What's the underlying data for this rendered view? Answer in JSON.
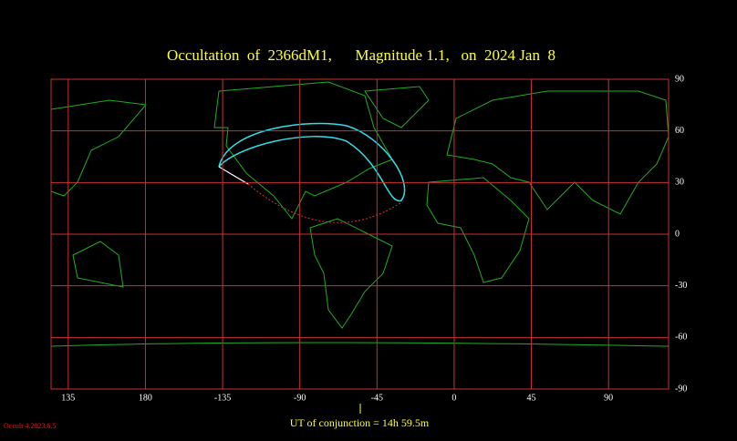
{
  "chart_data": {
    "type": "map",
    "title": "Occultation  of  2366dM1,      Magnitude 1.1,   on  2024 Jan  8",
    "xticks": [
      135,
      180,
      -135,
      -90,
      -45,
      0,
      45,
      90
    ],
    "yticks": [
      90,
      60,
      30,
      0,
      -30,
      -60,
      -90
    ],
    "xlim": [
      125,
      485
    ],
    "ylim": [
      -90,
      90
    ],
    "grid": true,
    "footer": "UT of conjunction = 14h 59.5m",
    "version": "Occult 4.2023.6.5"
  }
}
